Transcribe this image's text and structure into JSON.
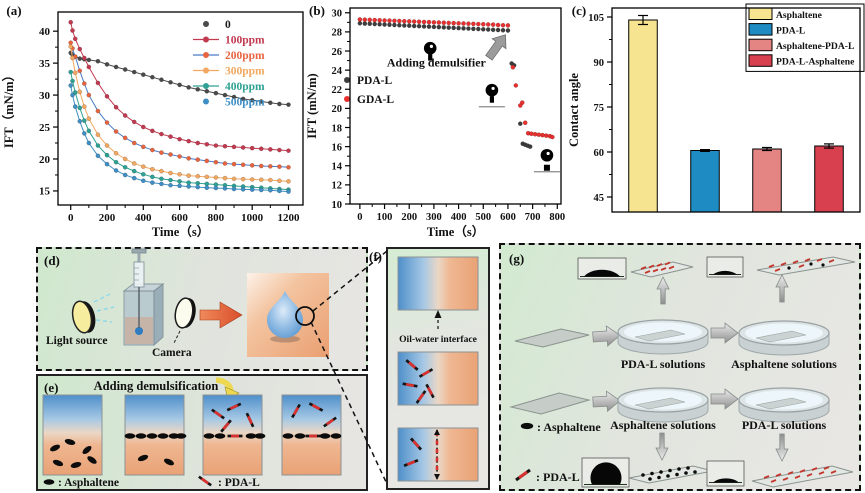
{
  "figure": {
    "panel_labels": {
      "a": "(a)",
      "b": "(b)",
      "c": "(c)",
      "d": "(d)",
      "e": "(e)",
      "f": "(f)",
      "g": "(g)"
    }
  },
  "chart_data": [
    {
      "id": "a",
      "type": "scatter",
      "xlabel": "Time（s）",
      "ylabel": "IFT（mN/m）",
      "xlim": [
        -70,
        1280
      ],
      "ylim": [
        12.8,
        43
      ],
      "xticks": [
        0,
        200,
        400,
        600,
        800,
        1000,
        1200
      ],
      "yticks": [
        15,
        20,
        25,
        30,
        35,
        40
      ],
      "legend_position": "top-right",
      "x": [
        0,
        10,
        25,
        50,
        75,
        100,
        150,
        200,
        250,
        300,
        350,
        400,
        450,
        500,
        550,
        600,
        650,
        700,
        750,
        800,
        850,
        900,
        950,
        1000,
        1050,
        1100,
        1150,
        1200
      ],
      "series": [
        {
          "name": "0",
          "color": "#4a4a4a",
          "line_color": "#4a4a4a",
          "label_color": "#1a1a1a",
          "legend_line": false,
          "y": [
            36.6,
            36.3,
            36.0,
            35.7,
            35.6,
            35.5,
            35.3,
            34.8,
            34.4,
            34.0,
            33.6,
            33.2,
            32.8,
            32.4,
            32.0,
            31.6,
            31.2,
            30.9,
            30.6,
            30.3,
            30.0,
            29.7,
            29.4,
            29.2,
            29.0,
            28.8,
            28.6,
            28.5
          ]
        },
        {
          "name": "100ppm",
          "color": "#c23a50",
          "line_color": "#c23a50",
          "legend_line": true,
          "y": [
            41.4,
            40.1,
            38.8,
            37.2,
            35.8,
            34.4,
            31.9,
            29.8,
            28.1,
            26.8,
            25.8,
            25.0,
            24.4,
            23.9,
            23.5,
            23.1,
            22.8,
            22.5,
            22.3,
            22.1,
            22.0,
            21.9,
            21.8,
            21.7,
            21.6,
            21.5,
            21.4,
            21.3
          ]
        },
        {
          "name": "200ppm",
          "color": "#e8643f",
          "line_color": "#4a7bc8",
          "legend_line": true,
          "y": [
            38.2,
            37.3,
            36.0,
            33.8,
            31.8,
            30.0,
            27.5,
            25.7,
            24.3,
            23.3,
            22.5,
            21.9,
            21.4,
            21.0,
            20.7,
            20.4,
            20.1,
            19.9,
            19.7,
            19.5,
            19.3,
            19.2,
            19.1,
            19.0,
            18.9,
            18.85,
            18.8,
            18.7
          ]
        },
        {
          "name": "300ppm",
          "color": "#f2a860",
          "line_color": "#f2a860",
          "legend_line": true,
          "y": [
            37.6,
            35.8,
            33.5,
            30.5,
            28.2,
            26.3,
            23.8,
            22.1,
            20.9,
            20.0,
            19.3,
            18.8,
            18.4,
            18.1,
            17.8,
            17.6,
            17.4,
            17.3,
            17.2,
            17.1,
            17.0,
            16.9,
            16.85,
            16.8,
            16.75,
            16.7,
            16.6,
            16.5
          ]
        },
        {
          "name": "400ppm",
          "color": "#2da193",
          "line_color": "#2da193",
          "legend_line": true,
          "y": [
            33.6,
            32.2,
            30.4,
            28.0,
            26.0,
            24.4,
            22.1,
            20.6,
            19.5,
            18.7,
            18.1,
            17.6,
            17.2,
            16.9,
            16.7,
            16.5,
            16.3,
            16.2,
            16.1,
            16.0,
            15.9,
            15.8,
            15.7,
            15.6,
            15.5,
            15.4,
            15.3,
            15.2
          ]
        },
        {
          "name": "500ppm",
          "color": "#3f8fc5",
          "line_color": "#3f8fc5",
          "legend_line": false,
          "y": [
            31.5,
            30.0,
            28.2,
            25.9,
            24.0,
            22.5,
            20.5,
            19.2,
            18.2,
            17.5,
            17.0,
            16.6,
            16.3,
            16.1,
            15.9,
            15.8,
            15.7,
            15.6,
            15.5,
            15.45,
            15.4,
            15.3,
            15.25,
            15.2,
            15.15,
            15.1,
            15.0,
            14.9
          ]
        }
      ]
    },
    {
      "id": "b",
      "type": "scatter",
      "xlabel": "Time（s）",
      "ylabel": "IFT (mN/m)",
      "xlim": [
        -40,
        815
      ],
      "ylim": [
        10,
        30.5
      ],
      "xticks": [
        0,
        100,
        200,
        300,
        400,
        500,
        600,
        700,
        800
      ],
      "yticks": [
        10,
        12,
        14,
        16,
        18,
        20,
        22,
        24,
        26,
        28,
        30
      ],
      "legend_position": "mid-left",
      "annotation": {
        "text": "Adding demulsifier",
        "text_at": [
          310,
          24.4
        ],
        "arrow_from": [
          523,
          25.3
        ],
        "arrow_to": [
          590,
          27.7
        ]
      },
      "droplet_markers": [
        {
          "x": 285,
          "y": 26.3,
          "baseline": false,
          "fallen": false
        },
        {
          "x": 535,
          "y": 21.9,
          "baseline": true,
          "fallen": false
        },
        {
          "x": 758,
          "y": 15.1,
          "baseline": true,
          "fallen": true
        }
      ],
      "series": [
        {
          "name": "PDA-L",
          "color": "#3d3d3d",
          "line_color": null,
          "x": [
            0,
            20,
            40,
            60,
            80,
            100,
            120,
            140,
            160,
            180,
            200,
            220,
            240,
            260,
            280,
            300,
            320,
            340,
            360,
            380,
            400,
            420,
            440,
            460,
            480,
            500,
            520,
            540,
            560,
            580,
            600,
            615,
            625,
            650,
            660,
            670,
            680,
            690
          ],
          "y": [
            28.9,
            28.87,
            28.85,
            28.82,
            28.8,
            28.77,
            28.75,
            28.72,
            28.7,
            28.67,
            28.65,
            28.62,
            28.6,
            28.57,
            28.55,
            28.52,
            28.5,
            28.47,
            28.45,
            28.42,
            28.4,
            28.37,
            28.35,
            28.32,
            28.3,
            28.27,
            28.25,
            28.22,
            28.2,
            28.17,
            28.15,
            24.7,
            24.5,
            18.4,
            16.3,
            16.2,
            16.1,
            16.0
          ]
        },
        {
          "name": "GDA-L",
          "color": "#e8302e",
          "line_color": null,
          "x": [
            0,
            20,
            40,
            60,
            80,
            100,
            120,
            140,
            160,
            180,
            200,
            220,
            240,
            260,
            280,
            300,
            320,
            340,
            360,
            380,
            400,
            420,
            440,
            460,
            480,
            500,
            520,
            540,
            560,
            580,
            600,
            620,
            632,
            650,
            658,
            670,
            682,
            695,
            710,
            725,
            740,
            755,
            770,
            780
          ],
          "y": [
            29.3,
            29.28,
            29.26,
            29.24,
            29.22,
            29.2,
            29.18,
            29.16,
            29.14,
            29.12,
            29.1,
            29.08,
            29.06,
            29.04,
            29.02,
            29.0,
            28.98,
            28.96,
            28.94,
            28.92,
            28.9,
            28.88,
            28.86,
            28.84,
            28.82,
            28.8,
            28.78,
            28.76,
            28.72,
            28.7,
            28.68,
            24.3,
            22.4,
            20.3,
            20.6,
            18.5,
            17.4,
            17.35,
            17.3,
            17.25,
            17.2,
            17.15,
            17.1,
            17.0
          ]
        }
      ]
    },
    {
      "id": "c",
      "type": "bar",
      "ylabel": "Contact angle",
      "categories": [
        "Asphaltene",
        "PDA-L",
        "Asphaltene-PDA-L",
        "PDA-L-Asphaltene"
      ],
      "values": [
        104,
        60.5,
        61,
        62
      ],
      "errors": [
        1.5,
        0.3,
        0.5,
        0.7
      ],
      "colors": [
        "#f7e491",
        "#1e8cc3",
        "#e58583",
        "#d84050"
      ],
      "ylim": [
        40,
        108
      ],
      "yticks": [
        45,
        60,
        75,
        90,
        105
      ],
      "legend_position": "top-right"
    }
  ],
  "panel_d": {
    "light_source": "Light source",
    "camera": "Camera"
  },
  "panel_e": {
    "title": "Adding demulsification",
    "legend_asphaltene": ": Asphaltene",
    "legend_pdal": ": PDA-L"
  },
  "panel_f": {
    "interface_label": "Oil-water interface"
  },
  "panel_g": {
    "dish_labels": [
      "PDA-L solutions",
      "Asphaltene solutions",
      "Asphaltene solutions",
      "PDA-L solutions"
    ],
    "legend_asphaltene": ": Asphaltene",
    "legend_pdal": ": PDA-L"
  }
}
